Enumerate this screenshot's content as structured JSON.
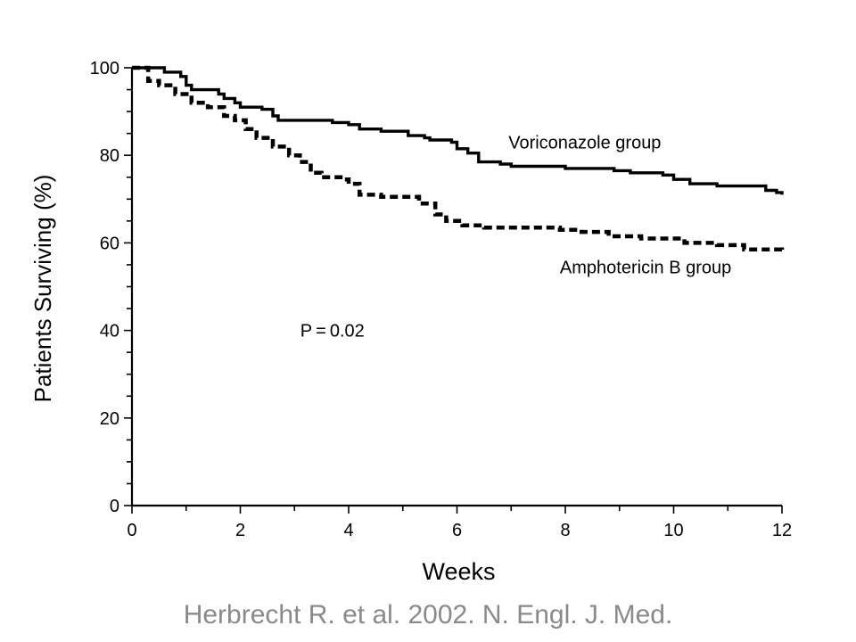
{
  "citation": "Herbrecht R. et al. 2002. N. Engl. J. Med.",
  "chart_data": {
    "type": "line",
    "title": "",
    "xlabel": "Weeks",
    "ylabel": "Patients Surviving (%)",
    "xlim": [
      0,
      12
    ],
    "ylim": [
      0,
      100
    ],
    "x_ticks": [
      0,
      2,
      4,
      6,
      8,
      10,
      12
    ],
    "y_ticks": [
      0,
      20,
      40,
      60,
      80,
      100
    ],
    "grid": false,
    "legend": "none",
    "annotations": [
      {
        "text": "P = 0.02",
        "x": 3.7,
        "y": 40
      }
    ],
    "series": [
      {
        "name": "Voriconazole group",
        "style": "solid",
        "color": "#000000",
        "label_anchor": {
          "x": 6.95,
          "y": 83
        },
        "points": [
          [
            0,
            100
          ],
          [
            0.5,
            100
          ],
          [
            0.6,
            99
          ],
          [
            0.9,
            98
          ],
          [
            1.0,
            96
          ],
          [
            1.1,
            95
          ],
          [
            1.6,
            94
          ],
          [
            1.7,
            93
          ],
          [
            1.9,
            92
          ],
          [
            2.0,
            91
          ],
          [
            2.4,
            90.5
          ],
          [
            2.6,
            89
          ],
          [
            2.7,
            88
          ],
          [
            3.5,
            88
          ],
          [
            3.7,
            87.5
          ],
          [
            4.0,
            87
          ],
          [
            4.2,
            86
          ],
          [
            4.6,
            85.5
          ],
          [
            5.1,
            84.5
          ],
          [
            5.4,
            84
          ],
          [
            5.5,
            83.5
          ],
          [
            5.9,
            83
          ],
          [
            6.0,
            81.5
          ],
          [
            6.2,
            80.5
          ],
          [
            6.4,
            78.5
          ],
          [
            6.8,
            78
          ],
          [
            7.0,
            77.5
          ],
          [
            7.8,
            77.5
          ],
          [
            8.0,
            77
          ],
          [
            8.9,
            76.5
          ],
          [
            9.2,
            76
          ],
          [
            9.8,
            75.5
          ],
          [
            10.0,
            74.5
          ],
          [
            10.3,
            73.5
          ],
          [
            10.6,
            73.5
          ],
          [
            10.8,
            73
          ],
          [
            11.5,
            73
          ],
          [
            11.7,
            72
          ],
          [
            11.9,
            71.5
          ],
          [
            12.0,
            71
          ]
        ]
      },
      {
        "name": "Amphotericin B group",
        "style": "dashed",
        "color": "#000000",
        "label_anchor": {
          "x": 7.9,
          "y": 54.5
        },
        "points": [
          [
            0,
            100
          ],
          [
            0.3,
            97
          ],
          [
            0.5,
            96
          ],
          [
            0.8,
            94
          ],
          [
            1.1,
            92
          ],
          [
            1.4,
            91
          ],
          [
            1.7,
            89
          ],
          [
            1.9,
            88
          ],
          [
            2.1,
            86
          ],
          [
            2.3,
            84
          ],
          [
            2.6,
            82
          ],
          [
            2.9,
            80
          ],
          [
            3.1,
            78.5
          ],
          [
            3.3,
            76
          ],
          [
            3.5,
            75
          ],
          [
            3.9,
            74.5
          ],
          [
            4.0,
            73.5
          ],
          [
            4.2,
            71
          ],
          [
            4.6,
            70.5
          ],
          [
            5.0,
            70.5
          ],
          [
            5.3,
            69
          ],
          [
            5.6,
            66.5
          ],
          [
            5.8,
            65
          ],
          [
            6.1,
            64
          ],
          [
            6.5,
            63.5
          ],
          [
            7.0,
            63.5
          ],
          [
            7.9,
            63
          ],
          [
            8.3,
            62.5
          ],
          [
            8.8,
            61.5
          ],
          [
            9.4,
            61
          ],
          [
            10.2,
            60
          ],
          [
            10.8,
            59.5
          ],
          [
            11.3,
            58.5
          ],
          [
            11.7,
            58.5
          ],
          [
            12.0,
            58
          ]
        ]
      }
    ]
  }
}
